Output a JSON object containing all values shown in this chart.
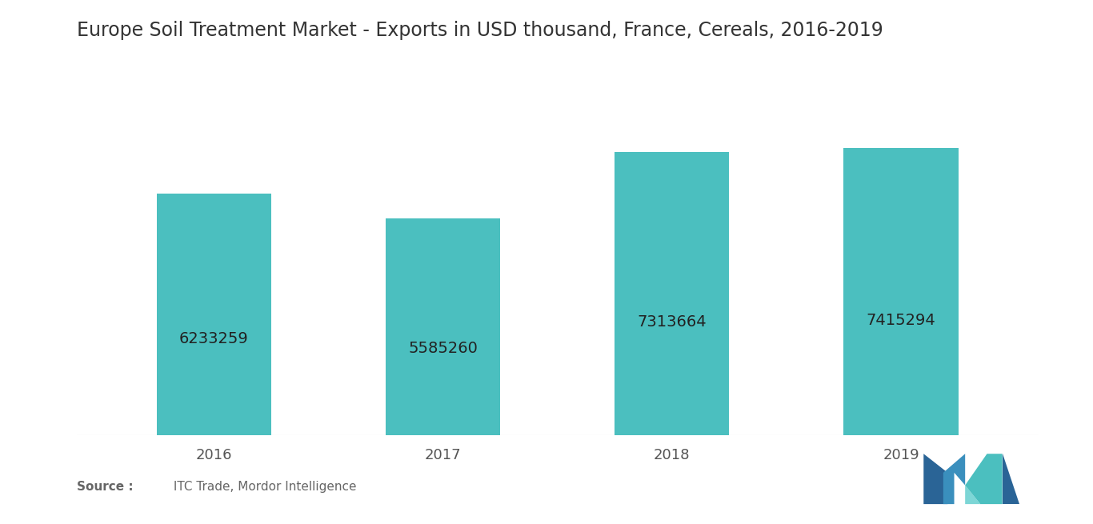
{
  "title": "Europe Soil Treatment Market - Exports in USD thousand, France, Cereals, 2016-2019",
  "categories": [
    "2016",
    "2017",
    "2018",
    "2019"
  ],
  "values": [
    6233259,
    5585260,
    7313664,
    7415294
  ],
  "bar_color": "#4BBFBF",
  "bar_labels": [
    "6233259",
    "5585260",
    "7313664",
    "7415294"
  ],
  "label_fontsize": 14,
  "title_fontsize": 17,
  "xlabel_fontsize": 13,
  "source_bold": "Source :",
  "source_rest": " ITC Trade, Mordor Intelligence",
  "background_color": "#ffffff",
  "ylim_max": 8800000,
  "bar_width": 0.5,
  "title_color": "#333333",
  "label_color": "#222222",
  "source_color": "#666666",
  "xtick_color": "#555555",
  "logo_m_dark": "#2a6496",
  "logo_m_mid": "#3a8fbd",
  "logo_teal": "#4BBFBF",
  "logo_light_teal": "#7dd6d6"
}
